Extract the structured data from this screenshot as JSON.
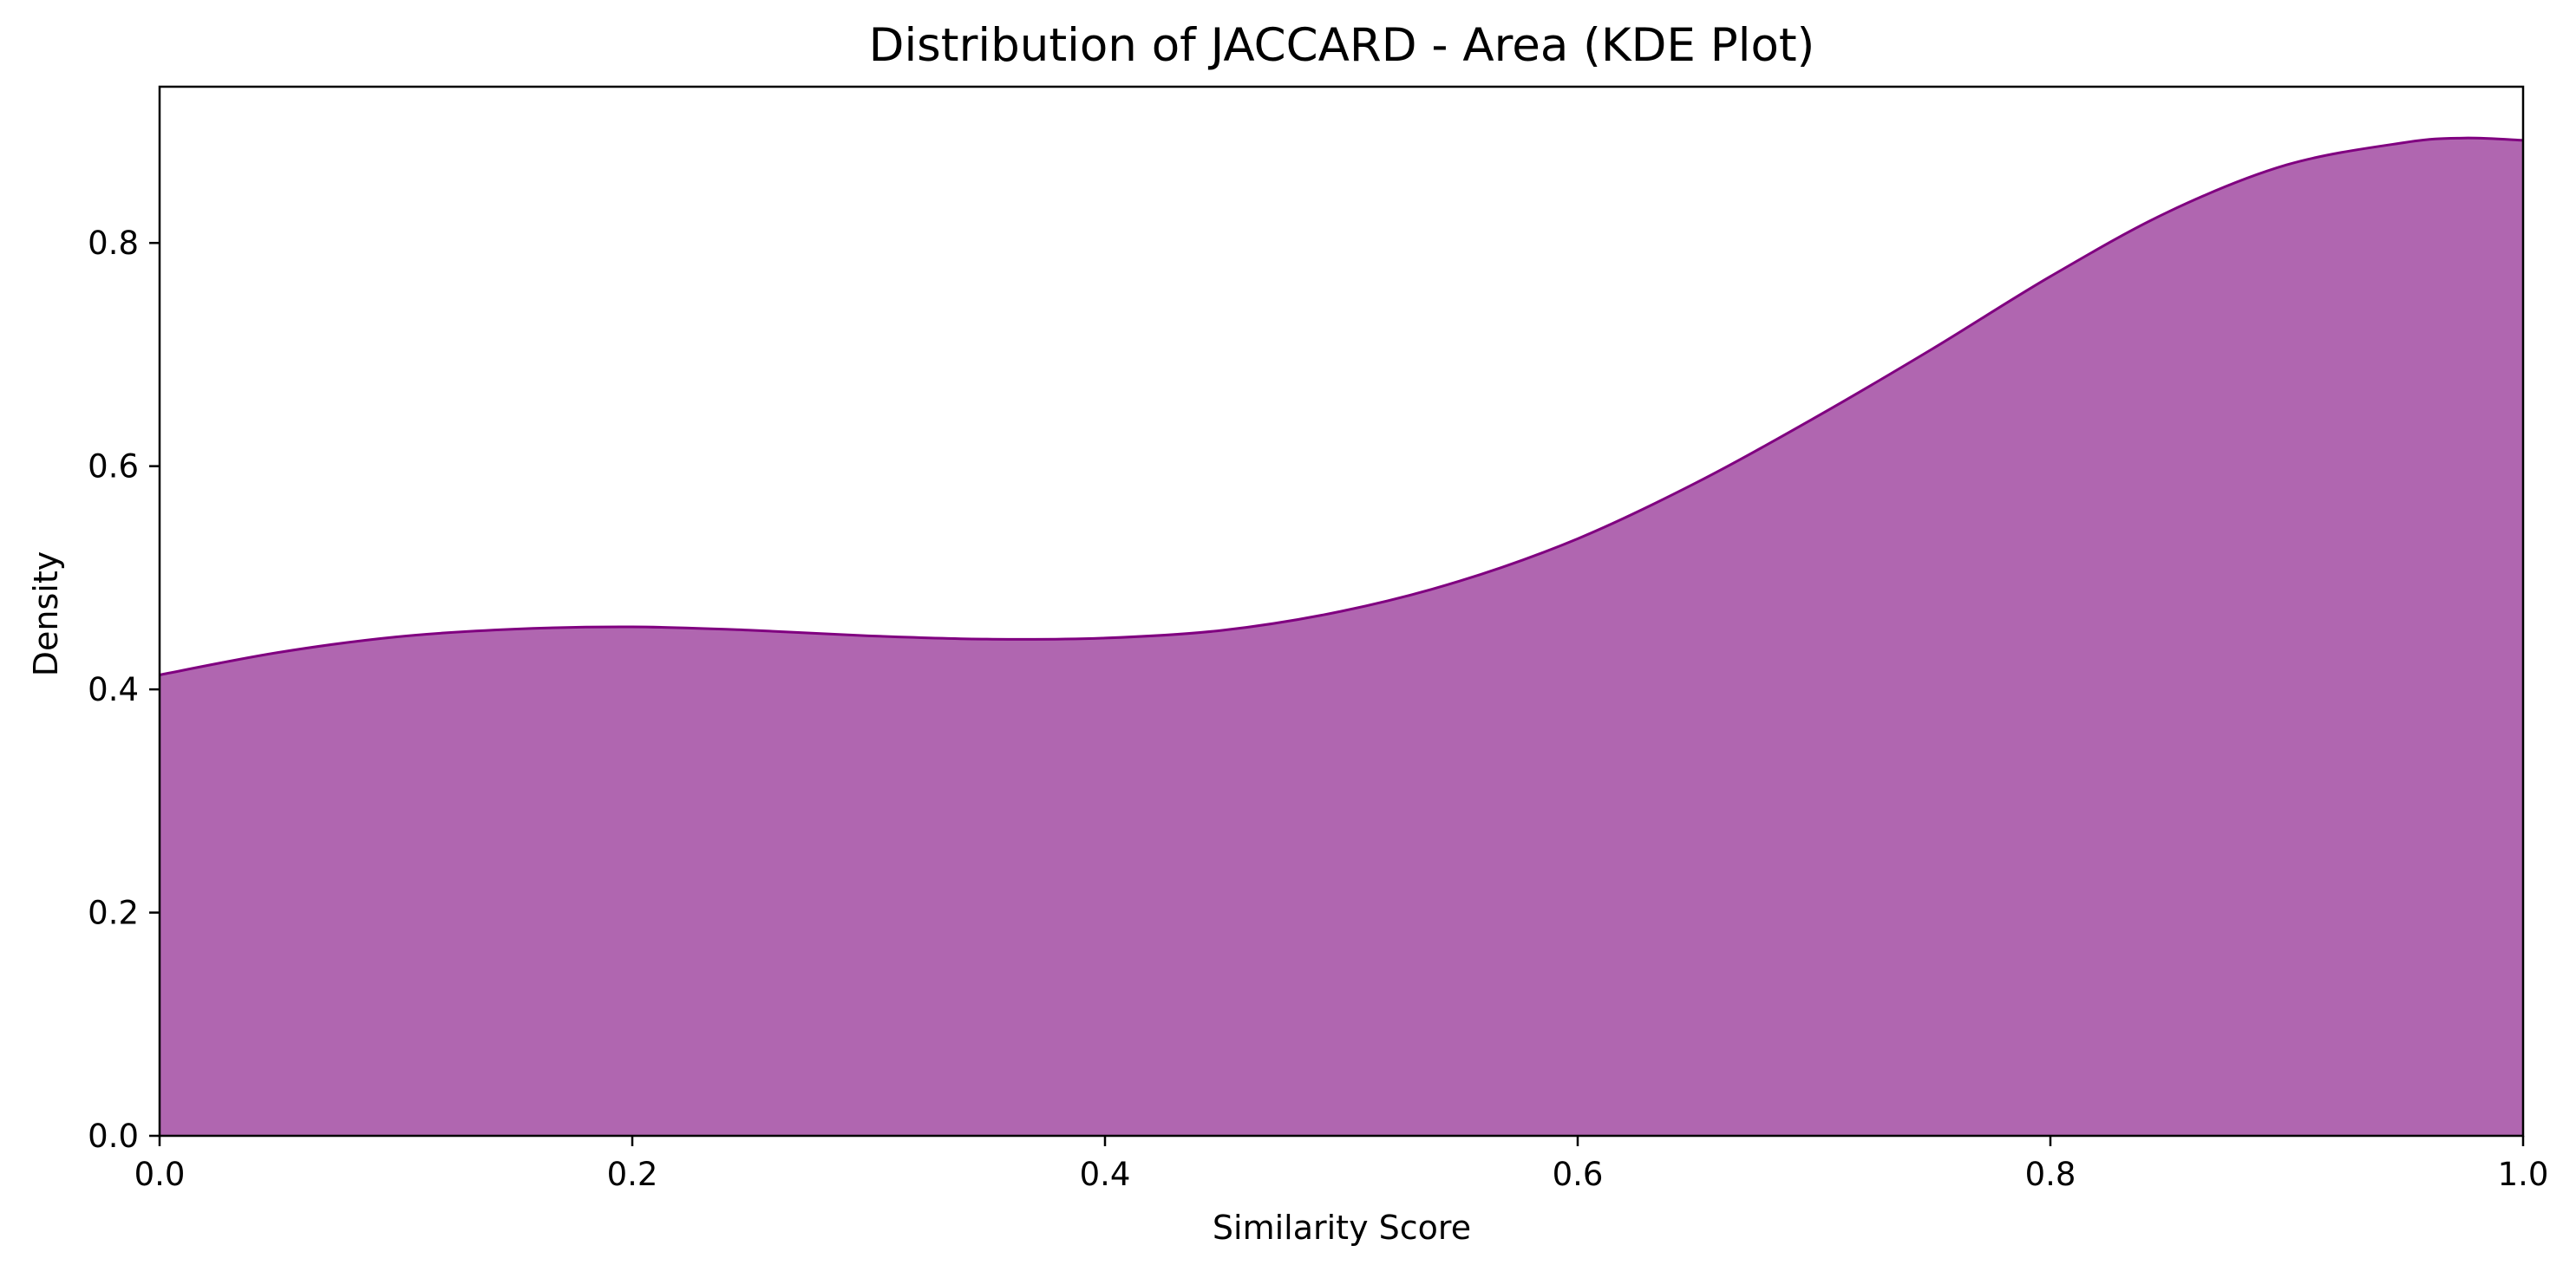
{
  "chart_data": {
    "type": "area",
    "title": "Distribution of JACCARD - Area (KDE Plot)",
    "xlabel": "Similarity Score",
    "ylabel": "Density",
    "xlim": [
      0.0,
      1.0
    ],
    "ylim": [
      0.0,
      0.94
    ],
    "x_ticks": [
      0.0,
      0.2,
      0.4,
      0.6,
      0.8,
      1.0
    ],
    "x_tick_labels": [
      "0.0",
      "0.2",
      "0.4",
      "0.6",
      "0.8",
      "1.0"
    ],
    "y_ticks": [
      0.0,
      0.2,
      0.4,
      0.6,
      0.8
    ],
    "y_tick_labels": [
      "0.0",
      "0.2",
      "0.4",
      "0.6",
      "0.8"
    ],
    "grid": false,
    "series": [
      {
        "color": "#800080",
        "fill_color": "#b066b0",
        "x": [
          0.0,
          0.05,
          0.1,
          0.15,
          0.2,
          0.25,
          0.3,
          0.35,
          0.4,
          0.45,
          0.5,
          0.55,
          0.6,
          0.65,
          0.7,
          0.75,
          0.8,
          0.85,
          0.9,
          0.95,
          0.975,
          1.0
        ],
        "y": [
          0.413,
          0.433,
          0.447,
          0.454,
          0.456,
          0.453,
          0.448,
          0.445,
          0.446,
          0.453,
          0.47,
          0.497,
          0.535,
          0.585,
          0.643,
          0.705,
          0.77,
          0.828,
          0.87,
          0.89,
          0.894,
          0.892
        ]
      }
    ]
  }
}
